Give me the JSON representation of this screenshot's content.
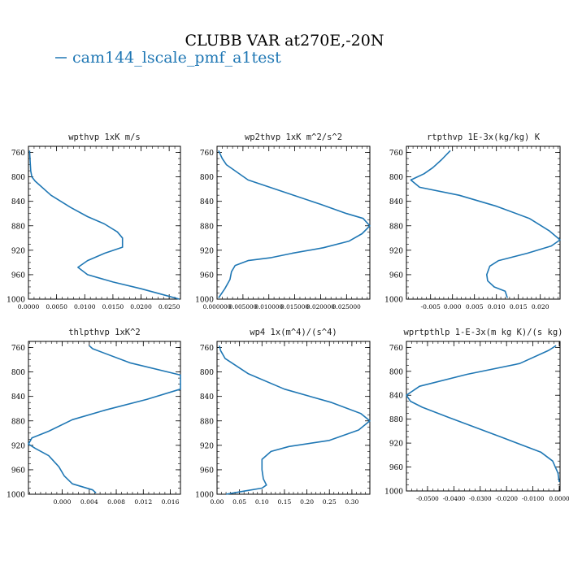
{
  "title": "CLUBB VAR at270E,-20N",
  "legend": {
    "label": "cam144_lscale_pmf_a1test",
    "color": "#1f77b4"
  },
  "chart_data": [
    {
      "type": "line",
      "title": "wpthvp  1xK m/s",
      "xlim": [
        0,
        0.027
      ],
      "ylim": [
        1000,
        750
      ],
      "x_ticks": [
        0,
        0.005,
        0.01,
        0.015,
        0.02,
        0.025
      ],
      "x_tick_labels": [
        "0.0000",
        "0.0050",
        "0.0100",
        "0.0150",
        "0.0200",
        "0.0250"
      ],
      "y_ticks": [
        760,
        800,
        840,
        880,
        920,
        960,
        1000
      ],
      "series": [
        {
          "x": [
            0.0002,
            0.0003,
            0.0004,
            0.0006,
            0.0012,
            0.004,
            0.0075,
            0.0105,
            0.0135,
            0.0158,
            0.0167,
            0.0167,
            0.0135,
            0.0105,
            0.0088,
            0.0105,
            0.015,
            0.02,
            0.024,
            0.0268
          ],
          "y": [
            757,
            775,
            790,
            800,
            807,
            830,
            850,
            865,
            877,
            890,
            900,
            915,
            925,
            937,
            948,
            960,
            972,
            983,
            993,
            1000
          ]
        }
      ]
    },
    {
      "type": "line",
      "title": "wp2thvp  1xK m^2/s^2",
      "xlim": [
        0,
        0.0295
      ],
      "ylim": [
        1000,
        750
      ],
      "x_ticks": [
        0,
        0.005,
        0.01,
        0.015,
        0.02,
        0.025
      ],
      "x_tick_labels": [
        "0.000000",
        "0.005000",
        "0.010000",
        "0.015000",
        "0.020000",
        "0.025000"
      ],
      "y_ticks": [
        760,
        800,
        840,
        880,
        920,
        960,
        1000
      ],
      "series": [
        {
          "x": [
            0.0003,
            0.001,
            0.0018,
            0.006,
            0.013,
            0.02,
            0.025,
            0.0282,
            0.0295,
            0.028,
            0.0255,
            0.0205,
            0.0145,
            0.0105,
            0.006,
            0.0035,
            0.0028,
            0.0025,
            0.0015,
            0.0003
          ],
          "y": [
            757,
            770,
            780,
            805,
            825,
            845,
            860,
            868,
            880,
            893,
            905,
            916,
            925,
            932,
            937,
            945,
            955,
            968,
            983,
            998
          ]
        }
      ]
    },
    {
      "type": "line",
      "title": "rtpthvp  1E-3x(kg/kg) K",
      "xlim": [
        -0.0105,
        0.0245
      ],
      "ylim": [
        1000,
        750
      ],
      "x_ticks": [
        -0.005,
        0,
        0.005,
        0.01,
        0.015,
        0.02
      ],
      "x_tick_labels": [
        "-0.005",
        "0.000",
        "0.005",
        "0.010",
        "0.015",
        "0.020"
      ],
      "y_ticks": [
        760,
        800,
        840,
        880,
        920,
        960,
        1000
      ],
      "series": [
        {
          "x": [
            -0.0005,
            -0.0025,
            -0.0045,
            -0.0065,
            -0.0095,
            -0.0075,
            0.0015,
            0.01,
            0.0175,
            0.022,
            0.0245,
            0.0225,
            0.017,
            0.0105,
            0.0085,
            0.0078,
            0.008,
            0.0095,
            0.012,
            0.0125
          ],
          "y": [
            757,
            772,
            785,
            795,
            805,
            817,
            830,
            848,
            868,
            888,
            903,
            913,
            925,
            937,
            946,
            960,
            970,
            980,
            987,
            998
          ]
        }
      ]
    },
    {
      "type": "line",
      "title": "thlpthvp  1xK^2",
      "xlim": [
        -0.005,
        0.0175
      ],
      "ylim": [
        1000,
        750
      ],
      "x_ticks": [
        0,
        0.004,
        0.008,
        0.012,
        0.016
      ],
      "x_tick_labels": [
        "0.000",
        "0.004",
        "0.008",
        "0.012",
        "0.016"
      ],
      "y_ticks": [
        760,
        800,
        840,
        880,
        920,
        960,
        1000
      ],
      "series": [
        {
          "x": [
            0.004,
            0.0045,
            0.01,
            0.0175,
            0.0175,
            0.0125,
            0.0065,
            0.0015,
            -0.002,
            -0.0045,
            -0.005,
            -0.004,
            -0.002,
            -0.0005,
            0.0003,
            0.0015,
            0.0045,
            0.005
          ],
          "y": [
            757,
            762,
            785,
            805,
            828,
            845,
            862,
            878,
            897,
            908,
            918,
            925,
            937,
            955,
            970,
            983,
            993,
            998
          ]
        }
      ]
    },
    {
      "type": "line",
      "title": "wp4  1x(m^4)/(s^4)",
      "xlim": [
        0,
        0.34
      ],
      "ylim": [
        1000,
        750
      ],
      "x_ticks": [
        0,
        0.05,
        0.1,
        0.15,
        0.2,
        0.25,
        0.3
      ],
      "x_tick_labels": [
        "0.00",
        "0.05",
        "0.10",
        "0.15",
        "0.20",
        "0.25",
        "0.30"
      ],
      "y_ticks": [
        760,
        800,
        840,
        880,
        920,
        960,
        1000
      ],
      "series": [
        {
          "x": [
            0.005,
            0.008,
            0.018,
            0.07,
            0.15,
            0.255,
            0.32,
            0.34,
            0.315,
            0.25,
            0.16,
            0.12,
            0.1,
            0.1,
            0.103,
            0.11,
            0.1,
            0.06,
            0.02
          ],
          "y": [
            757,
            765,
            778,
            803,
            828,
            850,
            868,
            880,
            895,
            912,
            922,
            930,
            943,
            960,
            975,
            985,
            990,
            995,
            1000
          ]
        }
      ]
    },
    {
      "type": "line",
      "title": "wprtpthlp  1-E-3x(m kg K)/(s kg)",
      "xlim": [
        -0.058,
        0.0003
      ],
      "ylim": [
        1000,
        750
      ],
      "x_ticks": [
        -0.05,
        -0.04,
        -0.03,
        -0.02,
        -0.01,
        0
      ],
      "x_tick_labels": [
        "-0.0500",
        "-0.0400",
        "-0.0300",
        "-0.0200",
        "-0.0100",
        "0.0000"
      ],
      "y_ticks": [
        760,
        800,
        840,
        880,
        920,
        960,
        1000
      ],
      "series": [
        {
          "x": [
            -0.0012,
            -0.004,
            -0.015,
            -0.035,
            -0.053,
            -0.058,
            -0.0565,
            -0.052,
            -0.042,
            -0.022,
            -0.007,
            -0.0025,
            -0.0005,
            0
          ],
          "y": [
            757,
            765,
            787,
            805,
            825,
            840,
            850,
            860,
            877,
            910,
            935,
            950,
            970,
            985
          ]
        }
      ]
    }
  ]
}
